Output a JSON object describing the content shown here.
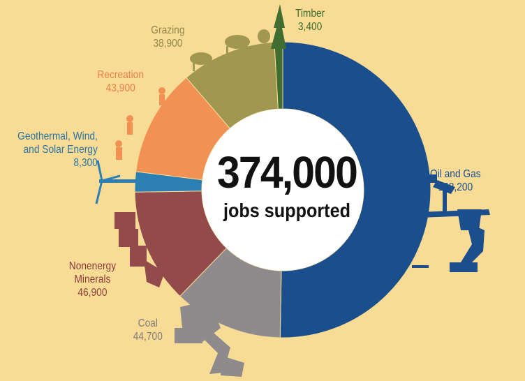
{
  "chart_data": {
    "type": "pie",
    "variant": "donut",
    "total": {
      "value": "374,000",
      "label": "jobs supported"
    },
    "slices": [
      {
        "name": "Oil and Gas",
        "value": 188200,
        "display": "188,200",
        "color": "#1a4e8c",
        "label_color": "#1a4e8c"
      },
      {
        "name": "Coal",
        "value": 44700,
        "display": "44,700",
        "color": "#8f8a8c",
        "label_color": "#7d7a7b"
      },
      {
        "name": "Nonenergy Minerals",
        "value": 46900,
        "display": "46,900",
        "color": "#924a4a",
        "label_color": "#8a3c3c"
      },
      {
        "name": "Geothermal, Wind, and Solar Energy",
        "value": 8300,
        "display": "8,300",
        "color": "#2b7fb5",
        "label_color": "#2873a5"
      },
      {
        "name": "Recreation",
        "value": 43900,
        "display": "43,900",
        "color": "#f19153",
        "label_color": "#e8804a"
      },
      {
        "name": "Grazing",
        "value": 38900,
        "display": "38,900",
        "color": "#a09850",
        "label_color": "#8f8847"
      },
      {
        "name": "Timber",
        "value": 3400,
        "display": "3,400",
        "color": "#416d32",
        "label_color": "#3b6a2c"
      }
    ]
  },
  "labels": {
    "oil_name": "Oil and Gas",
    "oil_value": "188,200",
    "coal_name": "Coal",
    "coal_value": "44,700",
    "min_name1": "Nonenergy",
    "min_name2": "Minerals",
    "min_value": "46,900",
    "geo_name1": "Geothermal, Wind,",
    "geo_name2": "and Solar Energy",
    "geo_value": "8,300",
    "rec_name": "Recreation",
    "rec_value": "43,900",
    "graz_name": "Grazing",
    "graz_value": "38,900",
    "timb_name": "Timber",
    "timb_value": "3,400"
  },
  "icons": [
    "pumpjack-icon",
    "coal-shovel-icon",
    "mining-equipment-icon",
    "wind-turbine-icon",
    "hikers-icon",
    "cattle-icon",
    "tree-icon"
  ]
}
